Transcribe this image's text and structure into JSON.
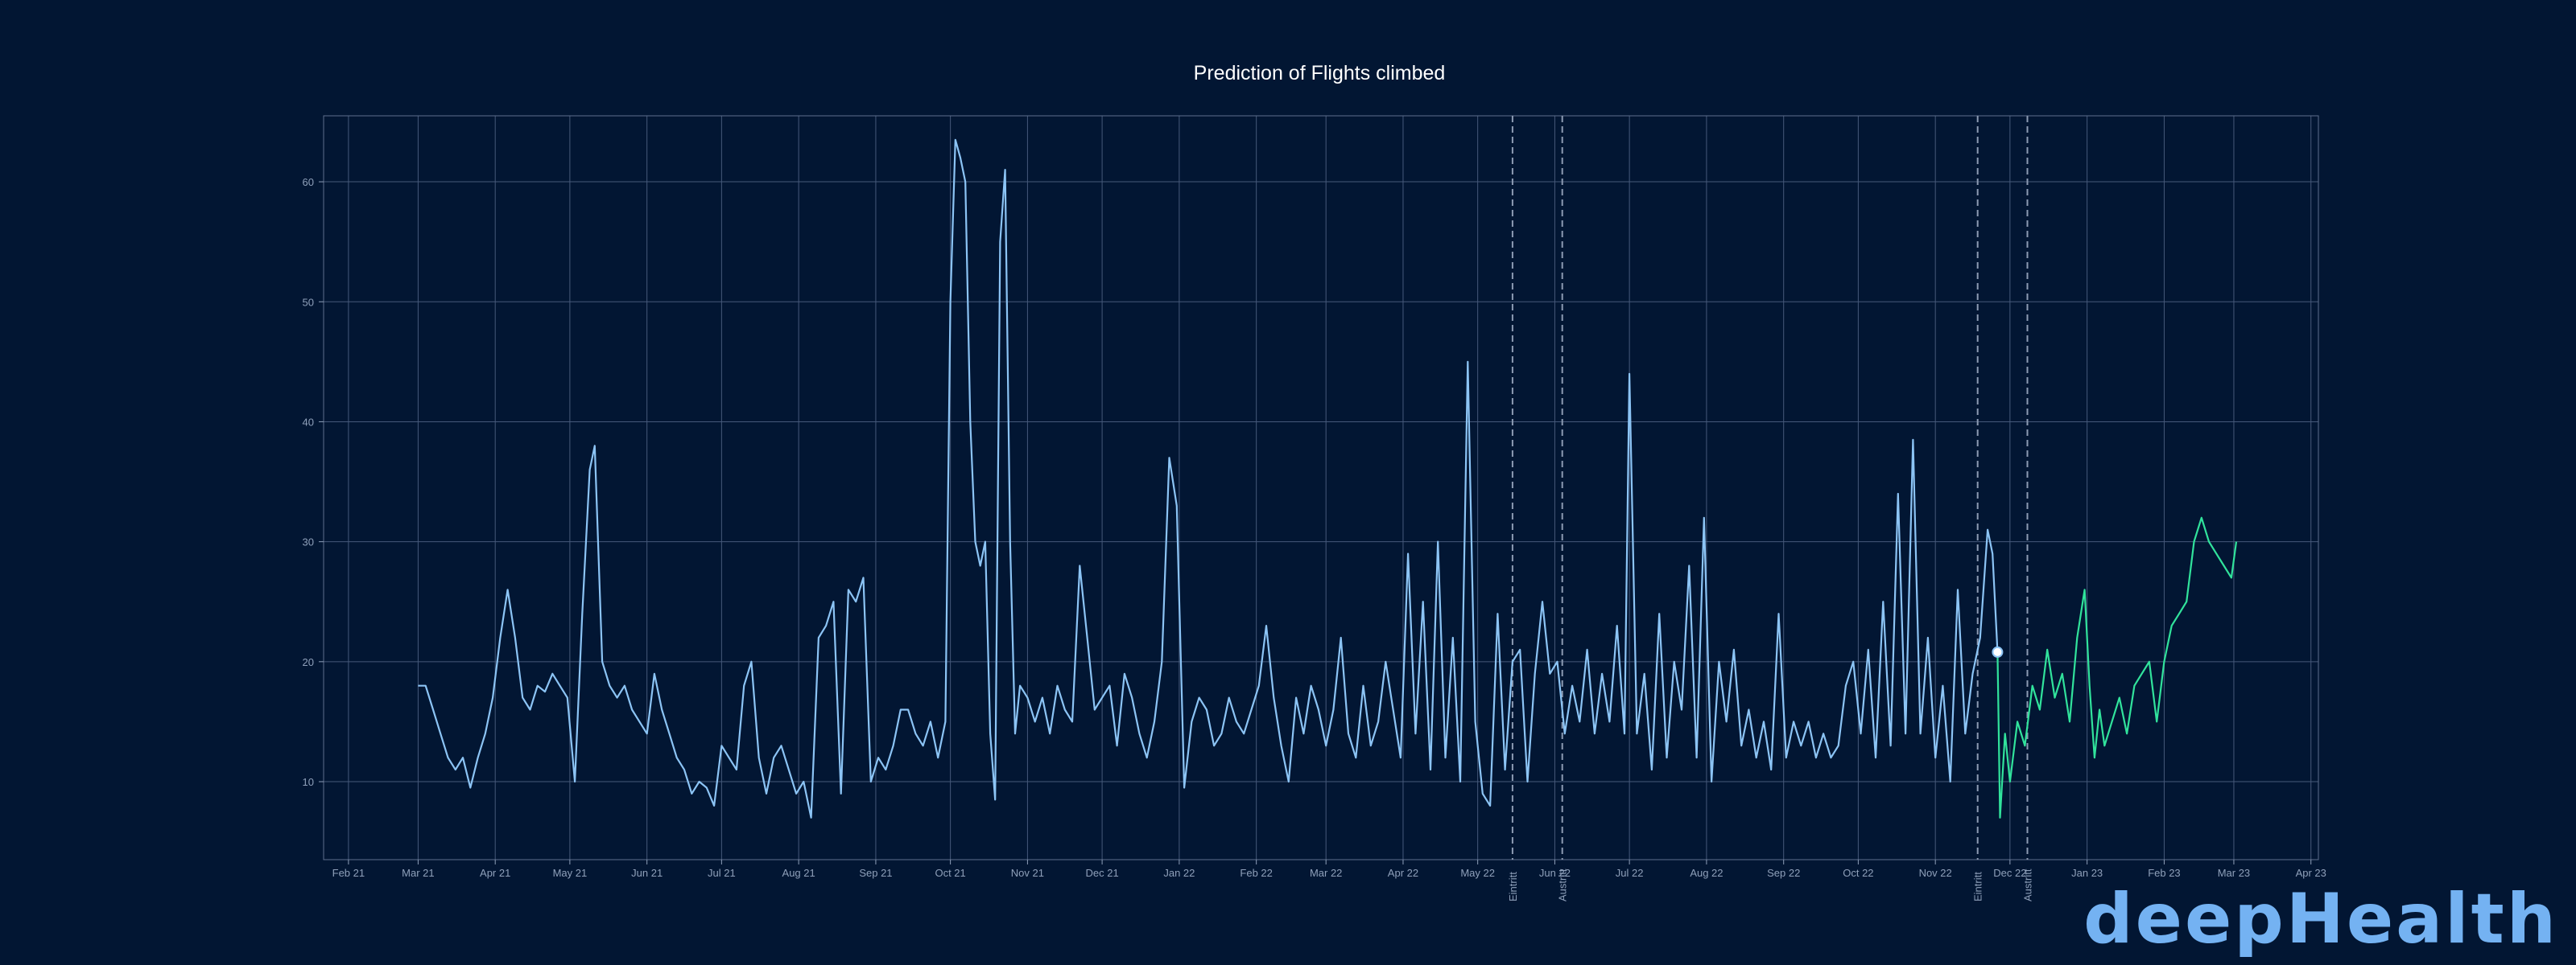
{
  "chart_data": {
    "type": "line",
    "title": "Prediction of Flights climbed",
    "xlabel": "",
    "ylabel": "",
    "x_ticks": [
      "Feb 21",
      "Mar 21",
      "Apr 21",
      "May 21",
      "Jun 21",
      "Jul 21",
      "Aug 21",
      "Sep 21",
      "Oct 21",
      "Nov 21",
      "Dec 21",
      "Jan 22",
      "Feb 22",
      "Mar 22",
      "Apr 22",
      "May 22",
      "Jun 22",
      "Jul 22",
      "Aug 22",
      "Sep 22",
      "Oct 22",
      "Nov 22",
      "Dec 22",
      "Jan 23",
      "Feb 23",
      "Mar 23",
      "Apr 23"
    ],
    "y_ticks": [
      10,
      20,
      30,
      40,
      50,
      60
    ],
    "xlim": [
      "2021-01-22",
      "2023-04-04"
    ],
    "ylim": [
      3.5,
      65.5
    ],
    "grid": true,
    "vertical_markers": [
      {
        "date": "2022-05-15",
        "label": "Eintritt"
      },
      {
        "date": "2022-06-04",
        "label": "Austritt"
      },
      {
        "date": "2022-11-18",
        "label": "Eintritt"
      },
      {
        "date": "2022-12-08",
        "label": "Austritt"
      }
    ],
    "highlight_point": {
      "date": "2022-11-26",
      "value": 20.8
    },
    "series": [
      {
        "color": "#8cc4f5",
        "points": [
          [
            "2021-03-01",
            18
          ],
          [
            "2021-03-04",
            18
          ],
          [
            "2021-03-07",
            16
          ],
          [
            "2021-03-10",
            14
          ],
          [
            "2021-03-13",
            12
          ],
          [
            "2021-03-16",
            11
          ],
          [
            "2021-03-19",
            12
          ],
          [
            "2021-03-22",
            9.5
          ],
          [
            "2021-03-25",
            12
          ],
          [
            "2021-03-28",
            14
          ],
          [
            "2021-03-31",
            17
          ],
          [
            "2021-04-03",
            22
          ],
          [
            "2021-04-06",
            26
          ],
          [
            "2021-04-09",
            22
          ],
          [
            "2021-04-12",
            17
          ],
          [
            "2021-04-15",
            16
          ],
          [
            "2021-04-18",
            18
          ],
          [
            "2021-04-21",
            17.5
          ],
          [
            "2021-04-24",
            19
          ],
          [
            "2021-04-27",
            18
          ],
          [
            "2021-04-30",
            17
          ],
          [
            "2021-05-03",
            10
          ],
          [
            "2021-05-06",
            24
          ],
          [
            "2021-05-09",
            36
          ],
          [
            "2021-05-11",
            38
          ],
          [
            "2021-05-14",
            20
          ],
          [
            "2021-05-17",
            18
          ],
          [
            "2021-05-20",
            17
          ],
          [
            "2021-05-23",
            18
          ],
          [
            "2021-05-26",
            16
          ],
          [
            "2021-05-29",
            15
          ],
          [
            "2021-06-01",
            14
          ],
          [
            "2021-06-04",
            19
          ],
          [
            "2021-06-07",
            16
          ],
          [
            "2021-06-10",
            14
          ],
          [
            "2021-06-13",
            12
          ],
          [
            "2021-06-16",
            11
          ],
          [
            "2021-06-19",
            9
          ],
          [
            "2021-06-22",
            10
          ],
          [
            "2021-06-25",
            9.5
          ],
          [
            "2021-06-28",
            8
          ],
          [
            "2021-07-01",
            13
          ],
          [
            "2021-07-04",
            12
          ],
          [
            "2021-07-07",
            11
          ],
          [
            "2021-07-10",
            18
          ],
          [
            "2021-07-13",
            20
          ],
          [
            "2021-07-16",
            12
          ],
          [
            "2021-07-19",
            9
          ],
          [
            "2021-07-22",
            12
          ],
          [
            "2021-07-25",
            13
          ],
          [
            "2021-07-28",
            11
          ],
          [
            "2021-07-31",
            9
          ],
          [
            "2021-08-03",
            10
          ],
          [
            "2021-08-06",
            7
          ],
          [
            "2021-08-09",
            22
          ],
          [
            "2021-08-12",
            23
          ],
          [
            "2021-08-15",
            25
          ],
          [
            "2021-08-18",
            9
          ],
          [
            "2021-08-21",
            26
          ],
          [
            "2021-08-24",
            25
          ],
          [
            "2021-08-27",
            27
          ],
          [
            "2021-08-30",
            10
          ],
          [
            "2021-09-02",
            12
          ],
          [
            "2021-09-05",
            11
          ],
          [
            "2021-09-08",
            13
          ],
          [
            "2021-09-11",
            16
          ],
          [
            "2021-09-14",
            16
          ],
          [
            "2021-09-17",
            14
          ],
          [
            "2021-09-20",
            13
          ],
          [
            "2021-09-23",
            15
          ],
          [
            "2021-09-26",
            12
          ],
          [
            "2021-09-29",
            15
          ],
          [
            "2021-10-01",
            50
          ],
          [
            "2021-10-03",
            63.5
          ],
          [
            "2021-10-05",
            62
          ],
          [
            "2021-10-07",
            60
          ],
          [
            "2021-10-09",
            40
          ],
          [
            "2021-10-11",
            30
          ],
          [
            "2021-10-13",
            28
          ],
          [
            "2021-10-15",
            30
          ],
          [
            "2021-10-17",
            14
          ],
          [
            "2021-10-19",
            8.5
          ],
          [
            "2021-10-21",
            55
          ],
          [
            "2021-10-23",
            61
          ],
          [
            "2021-10-25",
            30
          ],
          [
            "2021-10-27",
            14
          ],
          [
            "2021-10-29",
            18
          ],
          [
            "2021-11-01",
            17
          ],
          [
            "2021-11-04",
            15
          ],
          [
            "2021-11-07",
            17
          ],
          [
            "2021-11-10",
            14
          ],
          [
            "2021-11-13",
            18
          ],
          [
            "2021-11-16",
            16
          ],
          [
            "2021-11-19",
            15
          ],
          [
            "2021-11-22",
            28
          ],
          [
            "2021-11-25",
            22
          ],
          [
            "2021-11-28",
            16
          ],
          [
            "2021-12-01",
            17
          ],
          [
            "2021-12-04",
            18
          ],
          [
            "2021-12-07",
            13
          ],
          [
            "2021-12-10",
            19
          ],
          [
            "2021-12-13",
            17
          ],
          [
            "2021-12-16",
            14
          ],
          [
            "2021-12-19",
            12
          ],
          [
            "2021-12-22",
            15
          ],
          [
            "2021-12-25",
            20
          ],
          [
            "2021-12-28",
            37
          ],
          [
            "2021-12-31",
            33
          ],
          [
            "2022-01-03",
            9.5
          ],
          [
            "2022-01-06",
            15
          ],
          [
            "2022-01-09",
            17
          ],
          [
            "2022-01-12",
            16
          ],
          [
            "2022-01-15",
            13
          ],
          [
            "2022-01-18",
            14
          ],
          [
            "2022-01-21",
            17
          ],
          [
            "2022-01-24",
            15
          ],
          [
            "2022-01-27",
            14
          ],
          [
            "2022-01-30",
            16
          ],
          [
            "2022-02-02",
            18
          ],
          [
            "2022-02-05",
            23
          ],
          [
            "2022-02-08",
            17
          ],
          [
            "2022-02-11",
            13
          ],
          [
            "2022-02-14",
            10
          ],
          [
            "2022-02-17",
            17
          ],
          [
            "2022-02-20",
            14
          ],
          [
            "2022-02-23",
            18
          ],
          [
            "2022-02-26",
            16
          ],
          [
            "2022-03-01",
            13
          ],
          [
            "2022-03-04",
            16
          ],
          [
            "2022-03-07",
            22
          ],
          [
            "2022-03-10",
            14
          ],
          [
            "2022-03-13",
            12
          ],
          [
            "2022-03-16",
            18
          ],
          [
            "2022-03-19",
            13
          ],
          [
            "2022-03-22",
            15
          ],
          [
            "2022-03-25",
            20
          ],
          [
            "2022-03-28",
            16
          ],
          [
            "2022-03-31",
            12
          ],
          [
            "2022-04-03",
            29
          ],
          [
            "2022-04-06",
            14
          ],
          [
            "2022-04-09",
            25
          ],
          [
            "2022-04-12",
            11
          ],
          [
            "2022-04-15",
            30
          ],
          [
            "2022-04-18",
            12
          ],
          [
            "2022-04-21",
            22
          ],
          [
            "2022-04-24",
            10
          ],
          [
            "2022-04-27",
            45
          ],
          [
            "2022-04-30",
            15
          ],
          [
            "2022-05-03",
            9
          ],
          [
            "2022-05-06",
            8
          ],
          [
            "2022-05-09",
            24
          ],
          [
            "2022-05-12",
            11
          ],
          [
            "2022-05-15",
            20
          ],
          [
            "2022-05-18",
            21
          ],
          [
            "2022-05-21",
            10
          ],
          [
            "2022-05-24",
            19
          ],
          [
            "2022-05-27",
            25
          ],
          [
            "2022-05-30",
            19
          ],
          [
            "2022-06-02",
            20
          ],
          [
            "2022-06-05",
            14
          ],
          [
            "2022-06-08",
            18
          ],
          [
            "2022-06-11",
            15
          ],
          [
            "2022-06-14",
            21
          ],
          [
            "2022-06-17",
            14
          ],
          [
            "2022-06-20",
            19
          ],
          [
            "2022-06-23",
            15
          ],
          [
            "2022-06-26",
            23
          ],
          [
            "2022-06-29",
            14
          ],
          [
            "2022-07-01",
            44
          ],
          [
            "2022-07-04",
            14
          ],
          [
            "2022-07-07",
            19
          ],
          [
            "2022-07-10",
            11
          ],
          [
            "2022-07-13",
            24
          ],
          [
            "2022-07-16",
            12
          ],
          [
            "2022-07-19",
            20
          ],
          [
            "2022-07-22",
            16
          ],
          [
            "2022-07-25",
            28
          ],
          [
            "2022-07-28",
            12
          ],
          [
            "2022-07-31",
            32
          ],
          [
            "2022-08-03",
            10
          ],
          [
            "2022-08-06",
            20
          ],
          [
            "2022-08-09",
            15
          ],
          [
            "2022-08-12",
            21
          ],
          [
            "2022-08-15",
            13
          ],
          [
            "2022-08-18",
            16
          ],
          [
            "2022-08-21",
            12
          ],
          [
            "2022-08-24",
            15
          ],
          [
            "2022-08-27",
            11
          ],
          [
            "2022-08-30",
            24
          ],
          [
            "2022-09-02",
            12
          ],
          [
            "2022-09-05",
            15
          ],
          [
            "2022-09-08",
            13
          ],
          [
            "2022-09-11",
            15
          ],
          [
            "2022-09-14",
            12
          ],
          [
            "2022-09-17",
            14
          ],
          [
            "2022-09-20",
            12
          ],
          [
            "2022-09-23",
            13
          ],
          [
            "2022-09-26",
            18
          ],
          [
            "2022-09-29",
            20
          ],
          [
            "2022-10-02",
            14
          ],
          [
            "2022-10-05",
            21
          ],
          [
            "2022-10-08",
            12
          ],
          [
            "2022-10-11",
            25
          ],
          [
            "2022-10-14",
            13
          ],
          [
            "2022-10-17",
            34
          ],
          [
            "2022-10-20",
            14
          ],
          [
            "2022-10-23",
            38.5
          ],
          [
            "2022-10-26",
            14
          ],
          [
            "2022-10-29",
            22
          ],
          [
            "2022-11-01",
            12
          ],
          [
            "2022-11-04",
            18
          ],
          [
            "2022-11-07",
            10
          ],
          [
            "2022-11-10",
            26
          ],
          [
            "2022-11-13",
            14
          ],
          [
            "2022-11-16",
            19
          ],
          [
            "2022-11-19",
            22
          ],
          [
            "2022-11-22",
            31
          ],
          [
            "2022-11-24",
            29
          ],
          [
            "2022-11-26",
            20.8
          ]
        ]
      },
      {
        "color": "#31e39c",
        "points": [
          [
            "2022-11-26",
            20.8
          ],
          [
            "2022-11-27",
            7
          ],
          [
            "2022-11-29",
            14
          ],
          [
            "2022-12-01",
            10
          ],
          [
            "2022-12-04",
            15
          ],
          [
            "2022-12-07",
            13
          ],
          [
            "2022-12-10",
            18
          ],
          [
            "2022-12-13",
            16
          ],
          [
            "2022-12-16",
            21
          ],
          [
            "2022-12-19",
            17
          ],
          [
            "2022-12-22",
            19
          ],
          [
            "2022-12-25",
            15
          ],
          [
            "2022-12-28",
            22
          ],
          [
            "2022-12-31",
            26
          ],
          [
            "2023-01-02",
            18
          ],
          [
            "2023-01-04",
            12
          ],
          [
            "2023-01-06",
            16
          ],
          [
            "2023-01-08",
            13
          ],
          [
            "2023-01-11",
            15
          ],
          [
            "2023-01-14",
            17
          ],
          [
            "2023-01-17",
            14
          ],
          [
            "2023-01-20",
            18
          ],
          [
            "2023-01-23",
            19
          ],
          [
            "2023-01-26",
            20
          ],
          [
            "2023-01-29",
            15
          ],
          [
            "2023-02-01",
            20
          ],
          [
            "2023-02-04",
            23
          ],
          [
            "2023-02-07",
            24
          ],
          [
            "2023-02-10",
            25
          ],
          [
            "2023-02-13",
            30
          ],
          [
            "2023-02-16",
            32
          ],
          [
            "2023-02-19",
            30
          ],
          [
            "2023-02-22",
            29
          ],
          [
            "2023-02-25",
            28
          ],
          [
            "2023-02-28",
            27
          ],
          [
            "2023-03-02",
            30
          ]
        ]
      }
    ]
  },
  "branding": {
    "logo_text": "deepHealth"
  }
}
